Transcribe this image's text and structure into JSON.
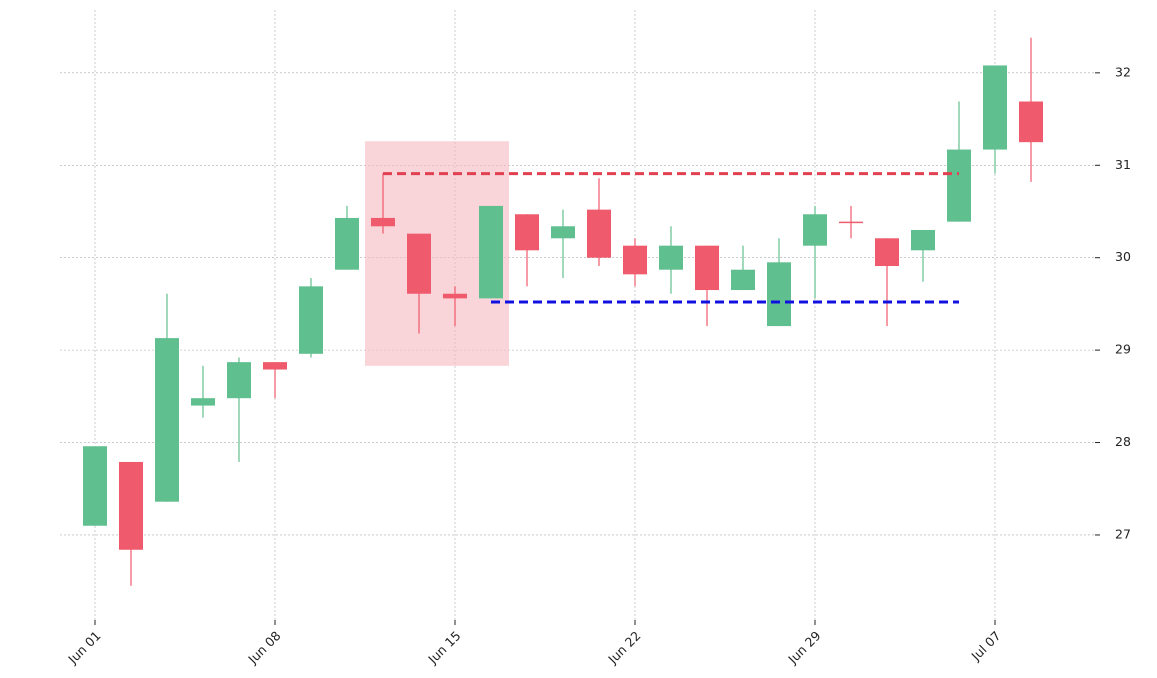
{
  "chart_data": {
    "type": "candlestick",
    "categories": [
      "Jun 01",
      null,
      null,
      null,
      null,
      "Jun 08",
      null,
      null,
      null,
      null,
      "Jun 15",
      null,
      null,
      null,
      null,
      "Jun 22",
      null,
      null,
      null,
      null,
      "Jun 29",
      null,
      null,
      null,
      null,
      "Jul 07",
      null
    ],
    "open": [
      27.1,
      27.79,
      27.36,
      28.4,
      28.48,
      28.87,
      28.96,
      29.87,
      30.43,
      30.26,
      29.61,
      29.56,
      30.47,
      30.21,
      30.52,
      30.13,
      29.87,
      30.13,
      29.65,
      29.26,
      30.13,
      30.39,
      30.21,
      30.08,
      30.39,
      31.17,
      31.69
    ],
    "high": [
      27.96,
      27.79,
      29.61,
      28.83,
      28.92,
      28.87,
      29.78,
      30.56,
      30.91,
      30.26,
      29.69,
      30.56,
      30.47,
      30.52,
      30.86,
      30.21,
      30.34,
      30.13,
      30.13,
      30.21,
      30.56,
      30.56,
      30.21,
      30.3,
      31.69,
      32.08,
      32.38
    ],
    "low": [
      27.1,
      26.45,
      27.36,
      28.27,
      27.79,
      28.48,
      28.92,
      29.87,
      30.26,
      29.18,
      29.26,
      29.56,
      29.69,
      29.78,
      29.91,
      29.69,
      29.61,
      29.26,
      29.65,
      29.26,
      29.56,
      30.21,
      29.26,
      29.74,
      30.39,
      30.91,
      30.82
    ],
    "close": [
      27.96,
      26.84,
      29.13,
      28.48,
      28.87,
      28.79,
      29.69,
      30.43,
      30.34,
      29.61,
      29.56,
      30.56,
      30.08,
      30.34,
      30.0,
      29.82,
      30.13,
      29.65,
      29.87,
      29.95,
      30.47,
      30.38,
      29.91,
      30.3,
      31.17,
      32.08,
      31.25
    ],
    "up_color": "#60bf8f",
    "down_color": "#ef5a6c",
    "highlight": {
      "from": 8,
      "to": 11,
      "ylim": [
        28.83,
        31.26
      ],
      "color": "#f5b7be"
    },
    "levels": [
      {
        "value": 30.91,
        "from": 8,
        "to": 24,
        "color": "#e04050"
      },
      {
        "value": 29.52,
        "from": 11,
        "to": 24,
        "color": "#1010e0"
      }
    ],
    "ylim": [
      26.08,
      32.68
    ],
    "yticks": [
      27,
      28,
      29,
      30,
      31,
      32
    ],
    "grid": true
  }
}
